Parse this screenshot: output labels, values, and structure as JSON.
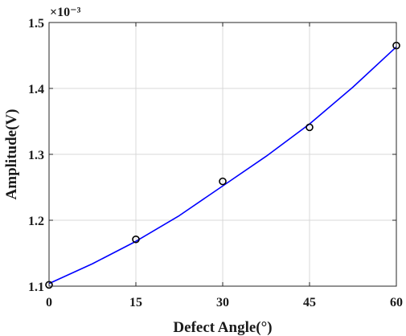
{
  "chart_data": {
    "type": "scatter",
    "title": "",
    "xlabel": "Defect Angle(°)",
    "ylabel": "Amplitude(V)",
    "y_exponent_label": "×10⁻³",
    "xlim": [
      0,
      60
    ],
    "ylim": [
      1.1,
      1.5
    ],
    "x_ticks": [
      0,
      15,
      30,
      45,
      60
    ],
    "x_tick_labels": [
      "0",
      "15",
      "30",
      "45",
      "60"
    ],
    "y_ticks": [
      1.1,
      1.2,
      1.3,
      1.4,
      1.5
    ],
    "y_tick_labels": [
      "1.1",
      "1.2",
      "1.3",
      "1.4",
      "1.5"
    ],
    "grid": true,
    "legend": "none",
    "series": [
      {
        "type": "scatter",
        "marker": "circle",
        "color": "#000000",
        "x": [
          0,
          15,
          30,
          45,
          60
        ],
        "y": [
          1.102,
          1.171,
          1.259,
          1.341,
          1.465
        ]
      },
      {
        "type": "line",
        "color": "#0000ff",
        "x": [
          0,
          7.5,
          15,
          22.5,
          30,
          37.5,
          45,
          52.5,
          60
        ],
        "y": [
          1.104,
          1.134,
          1.168,
          1.207,
          1.252,
          1.297,
          1.346,
          1.402,
          1.463
        ]
      }
    ]
  }
}
